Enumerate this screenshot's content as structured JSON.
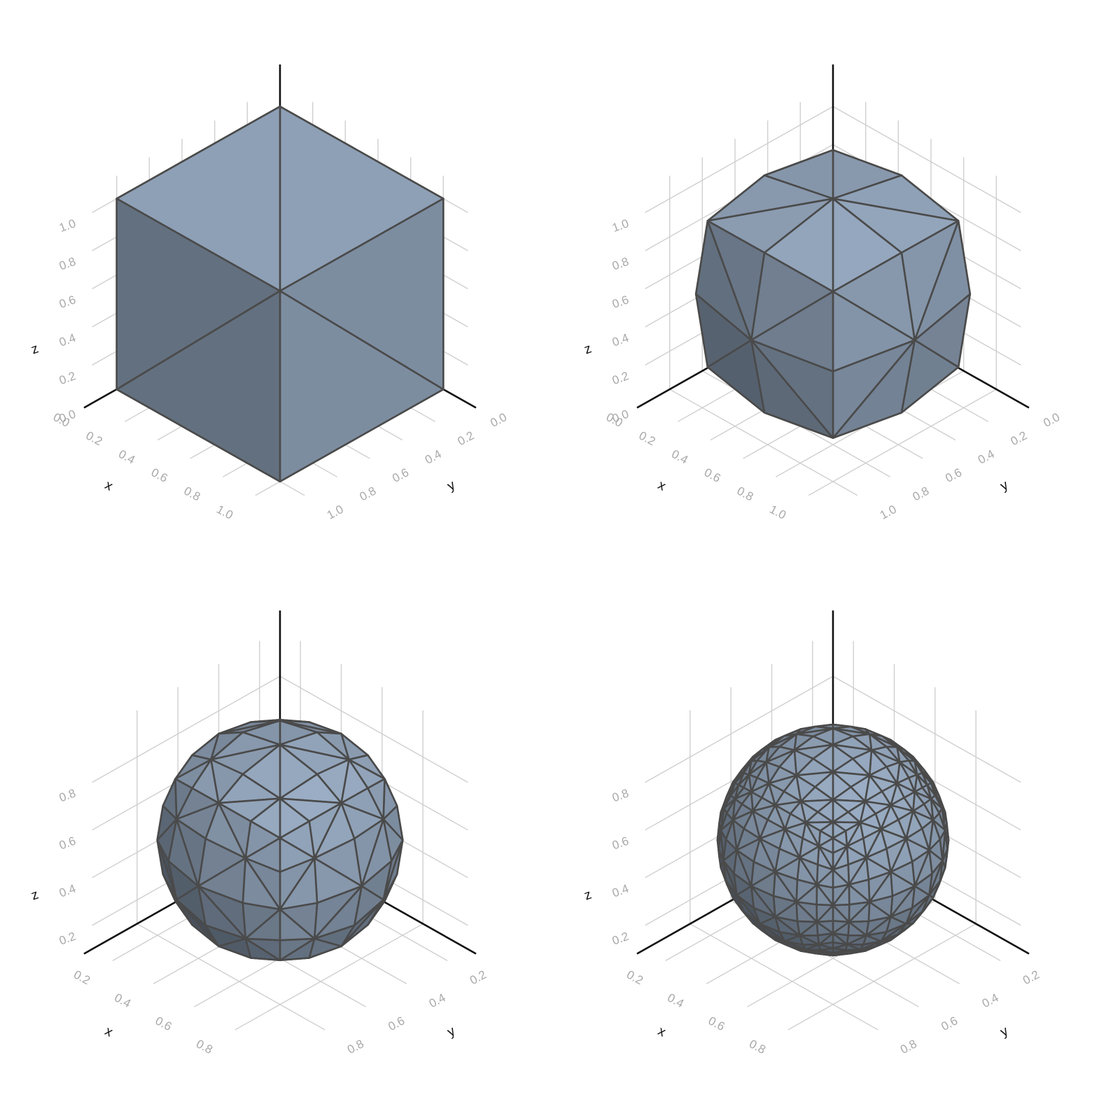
{
  "figure": {
    "background": "#ffffff",
    "layout": "2x2 grid"
  },
  "style": {
    "grid_color": "#cfcfcf",
    "axis_color": "#111111",
    "tick_label_color": "#a9a9a9",
    "mesh_edge_color": "#4a4a4a",
    "surface_light": "#97a9bf",
    "surface_mid": "#7b8ea2",
    "surface_dark": "#434c57"
  },
  "chart_data": [
    {
      "type": "mesh3d",
      "shape": "cube",
      "xlabel": "x",
      "ylabel": "y",
      "zlabel": "z",
      "xlim": [
        0,
        1
      ],
      "ylim": [
        0,
        1
      ],
      "zlim": [
        0,
        1
      ],
      "xticks": [
        "0.0",
        "0.2",
        "0.4",
        "0.6",
        "0.8",
        "1.0"
      ],
      "yticks": [
        "0.0",
        "0.2",
        "0.4",
        "0.6",
        "0.8",
        "1.0"
      ],
      "zticks": [
        "0.0",
        "0.2",
        "0.4",
        "0.6",
        "0.8",
        "1.0"
      ],
      "subdivision_level": 0,
      "grid": true
    },
    {
      "type": "mesh3d",
      "shape": "subdivided cube (level 1)",
      "xlabel": "x",
      "ylabel": "y",
      "zlabel": "z",
      "xlim": [
        0,
        1
      ],
      "ylim": [
        0,
        1
      ],
      "zlim": [
        0,
        1
      ],
      "xticks": [
        "0.0",
        "0.2",
        "0.4",
        "0.6",
        "0.8",
        "1.0"
      ],
      "yticks": [
        "0.0",
        "0.2",
        "0.4",
        "0.6",
        "0.8",
        "1.0"
      ],
      "zticks": [
        "0.0",
        "0.2",
        "0.4",
        "0.6",
        "0.8",
        "1.0"
      ],
      "subdivision_level": 1,
      "grid": true
    },
    {
      "type": "mesh3d",
      "shape": "subdivided cube (level 2)",
      "xlabel": "x",
      "ylabel": "y",
      "zlabel": "z",
      "xlim": [
        0.1,
        0.9
      ],
      "ylim": [
        0.1,
        0.9
      ],
      "zlim": [
        0.1,
        0.9
      ],
      "xticks": [
        "0.2",
        "0.4",
        "0.6",
        "0.8"
      ],
      "yticks": [
        "0.2",
        "0.4",
        "0.6",
        "0.8"
      ],
      "zticks": [
        "0.2",
        "0.4",
        "0.6",
        "0.8"
      ],
      "subdivision_level": 2,
      "grid": true
    },
    {
      "type": "mesh3d",
      "shape": "subdivided cube (level 3)",
      "xlabel": "x",
      "ylabel": "y",
      "zlabel": "z",
      "xlim": [
        0.1,
        0.9
      ],
      "ylim": [
        0.1,
        0.9
      ],
      "zlim": [
        0.1,
        0.9
      ],
      "xticks": [
        "0.2",
        "0.4",
        "0.6",
        "0.8"
      ],
      "yticks": [
        "0.2",
        "0.4",
        "0.6",
        "0.8"
      ],
      "zticks": [
        "0.2",
        "0.4",
        "0.6",
        "0.8"
      ],
      "subdivision_level": 3,
      "grid": true
    }
  ]
}
